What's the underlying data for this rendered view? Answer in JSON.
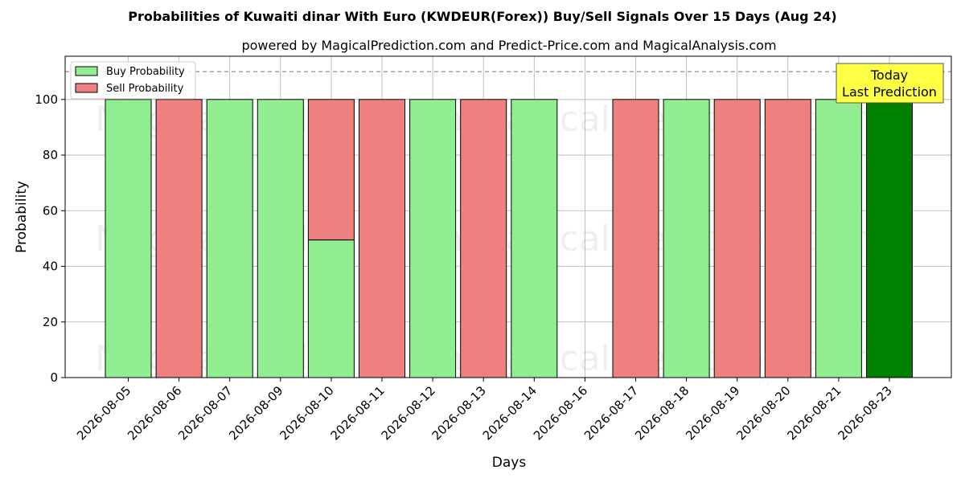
{
  "chart_data": {
    "type": "bar",
    "title": "Probabilities of Kuwaiti dinar With Euro (KWDEUR(Forex)) Buy/Sell Signals Over 15 Days (Aug 24)",
    "subtitle": "powered by MagicalPrediction.com and Predict-Price.com and MagicalAnalysis.com",
    "xlabel": "Days",
    "ylabel": "Probability",
    "ylim": [
      0,
      115
    ],
    "yticks": [
      0,
      20,
      40,
      60,
      80,
      100
    ],
    "grid": true,
    "legend_position": "top-left",
    "reference_line": 110,
    "categories": [
      "2026-08-05",
      "2026-08-06",
      "2026-08-07",
      "2026-08-09",
      "2026-08-10",
      "2026-08-11",
      "2026-08-12",
      "2026-08-13",
      "2026-08-14",
      "2026-08-16",
      "2026-08-17",
      "2026-08-18",
      "2026-08-19",
      "2026-08-20",
      "2026-08-21",
      "2026-08-23"
    ],
    "series": [
      {
        "name": "Buy Probability",
        "color": "#90ee90",
        "values": [
          100,
          0,
          100,
          100,
          49.5,
          0,
          100,
          0,
          100,
          0,
          0,
          100,
          0,
          0,
          100,
          100
        ]
      },
      {
        "name": "Sell Probability",
        "color": "#f08080",
        "values": [
          0,
          100,
          0,
          0,
          50.5,
          100,
          0,
          100,
          0,
          0,
          100,
          0,
          100,
          100,
          0,
          0
        ]
      }
    ],
    "today_index": 15,
    "today_color": "#008000",
    "annotation": {
      "line1": "Today",
      "line2": "Last Prediction",
      "background": "#ffff44"
    },
    "watermarks": [
      "MagicalAnalysis.com",
      "MagicalPrediction.com"
    ]
  }
}
